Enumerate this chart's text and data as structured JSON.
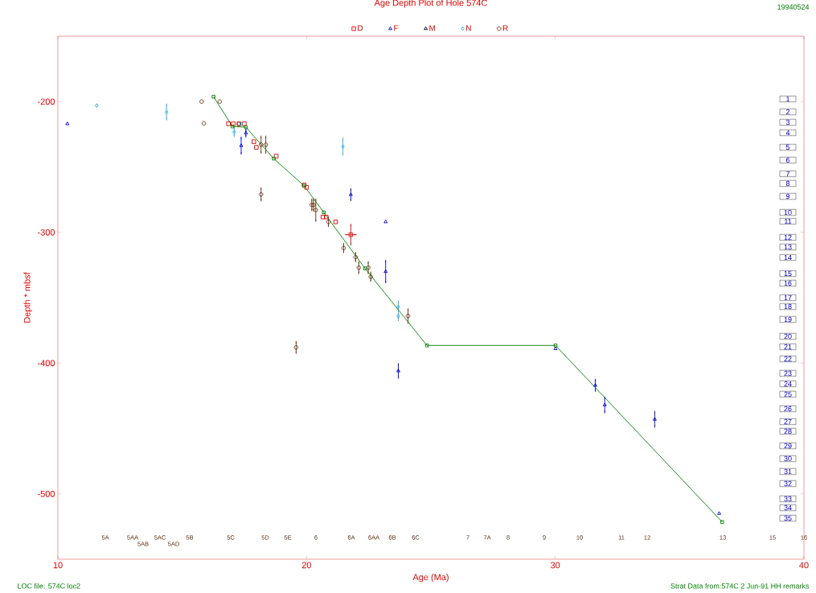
{
  "chart_data": {
    "type": "scatter",
    "title": "Age Depth Plot of Hole 574C",
    "xlabel": "Age (Ma)",
    "ylabel": "Depth * mbsf",
    "xlim": [
      10,
      40
    ],
    "ylim": [
      -550,
      -150
    ],
    "xticks": [
      10,
      20,
      30,
      40
    ],
    "yticks": [
      -500,
      -400,
      -300,
      -200
    ],
    "legend": "top",
    "series": [
      {
        "name": "D",
        "color": "#e00000",
        "marker": "square",
        "x": [
          16.86,
          17.05,
          17.28,
          17.5,
          17.88,
          17.98,
          18.78,
          19.9,
          20.0,
          20.66,
          20.79,
          21.17,
          21.78
        ],
        "values": [
          -217,
          -217,
          -217,
          -217,
          -230.7,
          -235,
          -241.7,
          -263.8,
          -265.6,
          -288.3,
          -288.3,
          -292,
          -301.8
        ],
        "errors": [
          null,
          null,
          null,
          null,
          null,
          null,
          null,
          null,
          null,
          null,
          null,
          null,
          7.4
        ],
        "xerrors": [
          null,
          null,
          null,
          null,
          null,
          null,
          null,
          null,
          null,
          null,
          null,
          null,
          0.19
        ]
      },
      {
        "name": "F",
        "color": "#0000d0",
        "marker": "triangle",
        "x": [
          10.38,
          17.37,
          17.56,
          21.78,
          23.18,
          23.18,
          23.69,
          30.01,
          31.61,
          31.99,
          34.0,
          36.59
        ],
        "values": [
          -217,
          -233.7,
          -224,
          -271.2,
          -292,
          -330,
          -406,
          -389,
          -417,
          -432,
          -443,
          -515
        ],
        "errors": [
          null,
          6,
          2.5,
          4,
          null,
          8,
          5,
          null,
          4,
          5.5,
          5.5,
          null
        ]
      },
      {
        "name": "M",
        "color": "#000000",
        "marker": "triangle"
      },
      {
        "name": "N",
        "color": "#20b0e8",
        "marker": "diamond",
        "x": [
          11.56,
          14.37,
          17.09,
          17.37,
          21.46,
          23.69,
          23.69
        ],
        "values": [
          -203,
          -208,
          -223.3,
          -217,
          -234.4,
          -357,
          -364
        ],
        "errors": [
          null,
          5.5,
          3,
          null,
          6,
          null,
          [
            -367,
            -353
          ]
        ]
      },
      {
        "name": "R",
        "color": "#603010",
        "marker": "circle",
        "x": [
          15.78,
          16.51,
          15.87,
          17.28,
          18.17,
          18.36,
          18.17,
          20.21,
          20.28,
          20.37,
          20.88,
          21.49,
          21.97,
          22.1,
          22.48,
          22.58,
          24.08,
          19.58
        ],
        "values": [
          -200,
          -200,
          -216.6,
          -217,
          -233,
          -233,
          -271,
          -279,
          -279,
          -283,
          -292,
          -312,
          -319,
          -327,
          -327,
          -334,
          -364,
          -388
        ],
        "errors": [
          null,
          null,
          null,
          null,
          6,
          6,
          4.5,
          4,
          4,
          8,
          3,
          3,
          3,
          4,
          4,
          3,
          5,
          4
        ]
      },
      {
        "type": "line",
        "color": "#008000",
        "marker": "square",
        "x": [
          16.26,
          17.02,
          17.56,
          18.68,
          19.9,
          20.69,
          22.35,
          24.84,
          30.01,
          36.71
        ],
        "values": [
          -196.3,
          -219,
          -219.6,
          -243.6,
          -264.4,
          -284.7,
          -327.6,
          -386.5,
          -386.5,
          -521.5
        ]
      }
    ],
    "annotations": [
      "19940524",
      "LOC file: 574C loc2",
      "Strat Data from:574C 2 Jun-91 HH remarks",
      "5A",
      "5AA",
      "5AB",
      "5AC",
      "5AD",
      "5B",
      "5C",
      "5D",
      "5E",
      "6",
      "6A",
      "6AA",
      "6B",
      "6C",
      "7",
      "7A",
      "8",
      "9",
      "10",
      "11",
      "12",
      "13",
      "15",
      "16",
      "1",
      "2",
      "3",
      "4",
      "5",
      "6",
      "7",
      "8",
      "9",
      "10",
      "11",
      "12",
      "13",
      "14",
      "15",
      "16",
      "17",
      "18",
      "19",
      "20",
      "21",
      "22",
      "23",
      "24",
      "25",
      "26",
      "27",
      "28",
      "29",
      "30",
      "31",
      "32",
      "33",
      "34",
      "35"
    ]
  }
}
